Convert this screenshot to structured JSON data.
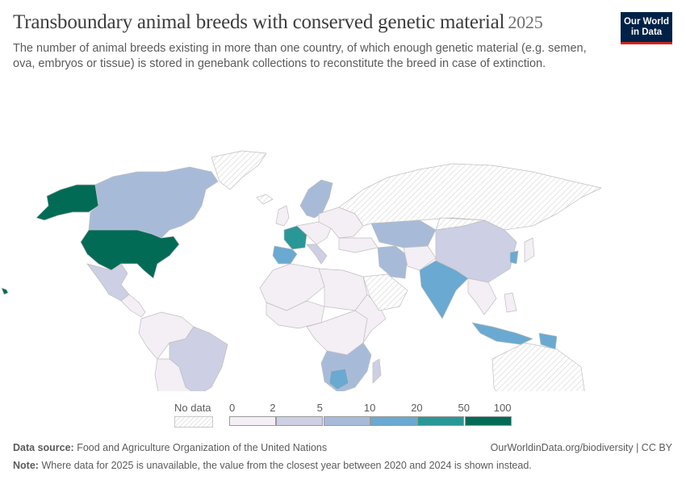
{
  "header": {
    "title": "Transboundary animal breeds with conserved genetic material",
    "year": "2025",
    "subtitle": "The number of animal breeds existing in more than one country, of which enough genetic material (e.g. semen, ova, embryos or tissue) is stored in genebank collections to reconstitute the breed in case of extinction."
  },
  "logo": {
    "line1": "Our World",
    "line2": "in Data"
  },
  "legend": {
    "no_data_label": "No data",
    "ticks": [
      "0",
      "2",
      "5",
      "10",
      "20",
      "50",
      "100"
    ],
    "bins": [
      {
        "from": 0,
        "to": 2,
        "color": "#f4eef5"
      },
      {
        "from": 2,
        "to": 5,
        "color": "#cdcfe4"
      },
      {
        "from": 5,
        "to": 10,
        "color": "#a7bbd9"
      },
      {
        "from": 10,
        "to": 20,
        "color": "#6aa9d1"
      },
      {
        "from": 20,
        "to": 50,
        "color": "#2a9797"
      },
      {
        "from": 50,
        "to": 100,
        "color": "#016b56"
      }
    ]
  },
  "colors": {
    "no_data": "#e8e8e8",
    "border": "#bfbfbf"
  },
  "footer": {
    "source_label": "Data source:",
    "source_text": "Food and Agriculture Organization of the United Nations",
    "credit": "OurWorldinData.org/biodiversity | CC BY",
    "note_label": "Note:",
    "note_text": "Where data for 2025 is unavailable, the value from the closest year between 2020 and 2024 is shown instead."
  },
  "map_data": {
    "type": "choropleth",
    "regions": [
      {
        "id": "alaska",
        "bin": 5
      },
      {
        "id": "canada",
        "bin": 2
      },
      {
        "id": "greenland",
        "bin": -1
      },
      {
        "id": "usa",
        "bin": 5
      },
      {
        "id": "mexico",
        "bin": 1
      },
      {
        "id": "central-america",
        "bin": 0
      },
      {
        "id": "south-america-north",
        "bin": 0
      },
      {
        "id": "brazil",
        "bin": 1
      },
      {
        "id": "south-america-south",
        "bin": 0
      },
      {
        "id": "iceland",
        "bin": -1
      },
      {
        "id": "uk",
        "bin": 0
      },
      {
        "id": "scandinavia",
        "bin": 2
      },
      {
        "id": "france",
        "bin": 4
      },
      {
        "id": "iberia",
        "bin": 3
      },
      {
        "id": "central-europe",
        "bin": 0
      },
      {
        "id": "italy",
        "bin": 1
      },
      {
        "id": "eastern-europe",
        "bin": 0
      },
      {
        "id": "russia",
        "bin": -1
      },
      {
        "id": "north-africa-west",
        "bin": 0
      },
      {
        "id": "north-africa-east",
        "bin": 0
      },
      {
        "id": "west-africa",
        "bin": 0
      },
      {
        "id": "central-africa",
        "bin": 0
      },
      {
        "id": "east-africa",
        "bin": 0
      },
      {
        "id": "southern-africa",
        "bin": 2
      },
      {
        "id": "botswana",
        "bin": 3
      },
      {
        "id": "madagascar",
        "bin": 1
      },
      {
        "id": "arabia",
        "bin": -1
      },
      {
        "id": "turkey",
        "bin": 0
      },
      {
        "id": "iran",
        "bin": 2
      },
      {
        "id": "kazakhstan",
        "bin": 2
      },
      {
        "id": "central-asia",
        "bin": 0
      },
      {
        "id": "india",
        "bin": 3
      },
      {
        "id": "china",
        "bin": 1
      },
      {
        "id": "mongolia",
        "bin": -1
      },
      {
        "id": "korea",
        "bin": 3
      },
      {
        "id": "japan",
        "bin": 0
      },
      {
        "id": "southeast-asia",
        "bin": 0
      },
      {
        "id": "indonesia",
        "bin": 3
      },
      {
        "id": "papua",
        "bin": 3
      },
      {
        "id": "philippines",
        "bin": 0
      },
      {
        "id": "australia",
        "bin": -1
      },
      {
        "id": "new-zealand",
        "bin": -1
      },
      {
        "id": "hawaii",
        "bin": 5
      }
    ]
  }
}
